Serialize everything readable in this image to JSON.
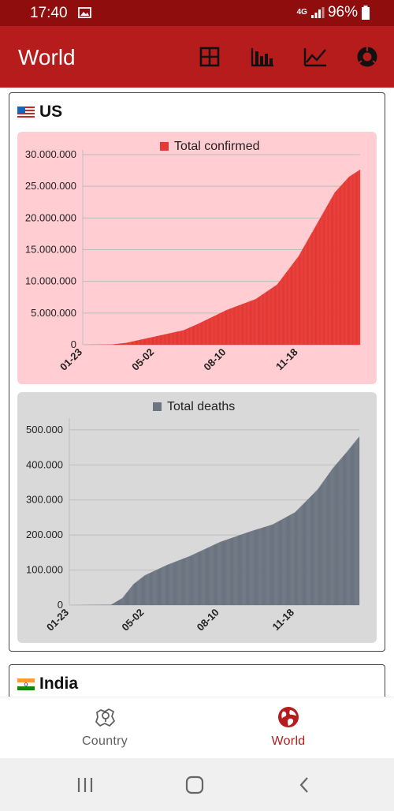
{
  "status_bar": {
    "time": "17:40",
    "network": "4G",
    "battery": "96%"
  },
  "app_bar": {
    "title": "World",
    "actions": [
      {
        "icon": "table-icon"
      },
      {
        "icon": "bar-chart-icon"
      },
      {
        "icon": "line-chart-icon"
      },
      {
        "icon": "donut-chart-icon"
      }
    ]
  },
  "cards": [
    {
      "country": "US",
      "charts": [
        {
          "type": "bar",
          "legend": "Total confirmed",
          "color": "#e53935",
          "background": "#ffcdd2",
          "x_tick_labels": [
            "01-23",
            "05-02",
            "08-10",
            "11-18"
          ],
          "y_tick_labels": [
            "0",
            "5.000.000",
            "10.000.000",
            "15.000.000",
            "20.000.000",
            "25.000.000",
            "30.000.000"
          ],
          "ylim": [
            0,
            30000000
          ]
        },
        {
          "type": "bar",
          "legend": "Total deaths",
          "color": "#6b7480",
          "background": "#d9d9d9",
          "x_tick_labels": [
            "01-23",
            "05-02",
            "08-10",
            "11-18"
          ],
          "y_tick_labels": [
            "0",
            "100.000",
            "200.000",
            "300.000",
            "400.000",
            "500.000"
          ],
          "ylim": [
            0,
            520000
          ]
        }
      ]
    },
    {
      "country": "India"
    }
  ],
  "chart_data": [
    {
      "type": "bar",
      "title": "",
      "series": [
        {
          "name": "Total confirmed",
          "values": []
        }
      ],
      "x_ticks": [
        "01-23",
        "05-02",
        "08-10",
        "11-18"
      ],
      "ylim": [
        0,
        30000000
      ],
      "anchors": [
        {
          "day": 0,
          "value": 0
        },
        {
          "day": 40,
          "value": 50000
        },
        {
          "day": 60,
          "value": 300000
        },
        {
          "day": 100,
          "value": 1300000
        },
        {
          "day": 140,
          "value": 2300000
        },
        {
          "day": 160,
          "value": 3300000
        },
        {
          "day": 200,
          "value": 5500000
        },
        {
          "day": 240,
          "value": 7200000
        },
        {
          "day": 270,
          "value": 9500000
        },
        {
          "day": 300,
          "value": 14000000
        },
        {
          "day": 330,
          "value": 20000000
        },
        {
          "day": 350,
          "value": 24000000
        },
        {
          "day": 370,
          "value": 26500000
        },
        {
          "day": 385,
          "value": 27600000
        }
      ],
      "grid": true,
      "legend_position": "top"
    },
    {
      "type": "bar",
      "title": "",
      "series": [
        {
          "name": "Total deaths",
          "values": []
        }
      ],
      "x_ticks": [
        "01-23",
        "05-02",
        "08-10",
        "11-18"
      ],
      "ylim": [
        0,
        520000
      ],
      "anchors": [
        {
          "day": 0,
          "value": 0
        },
        {
          "day": 55,
          "value": 1000
        },
        {
          "day": 70,
          "value": 20000
        },
        {
          "day": 85,
          "value": 60000
        },
        {
          "day": 100,
          "value": 85000
        },
        {
          "day": 130,
          "value": 115000
        },
        {
          "day": 160,
          "value": 140000
        },
        {
          "day": 200,
          "value": 180000
        },
        {
          "day": 240,
          "value": 210000
        },
        {
          "day": 270,
          "value": 230000
        },
        {
          "day": 300,
          "value": 265000
        },
        {
          "day": 330,
          "value": 330000
        },
        {
          "day": 350,
          "value": 390000
        },
        {
          "day": 370,
          "value": 440000
        },
        {
          "day": 385,
          "value": 480000
        }
      ],
      "grid": true,
      "legend_position": "top"
    }
  ],
  "bottom_nav": [
    {
      "label": "Country",
      "icon": "map-icon",
      "active": false,
      "color": "#5f5f5f"
    },
    {
      "label": "World",
      "icon": "globe-icon",
      "active": true,
      "color": "#b71c1c"
    }
  ]
}
